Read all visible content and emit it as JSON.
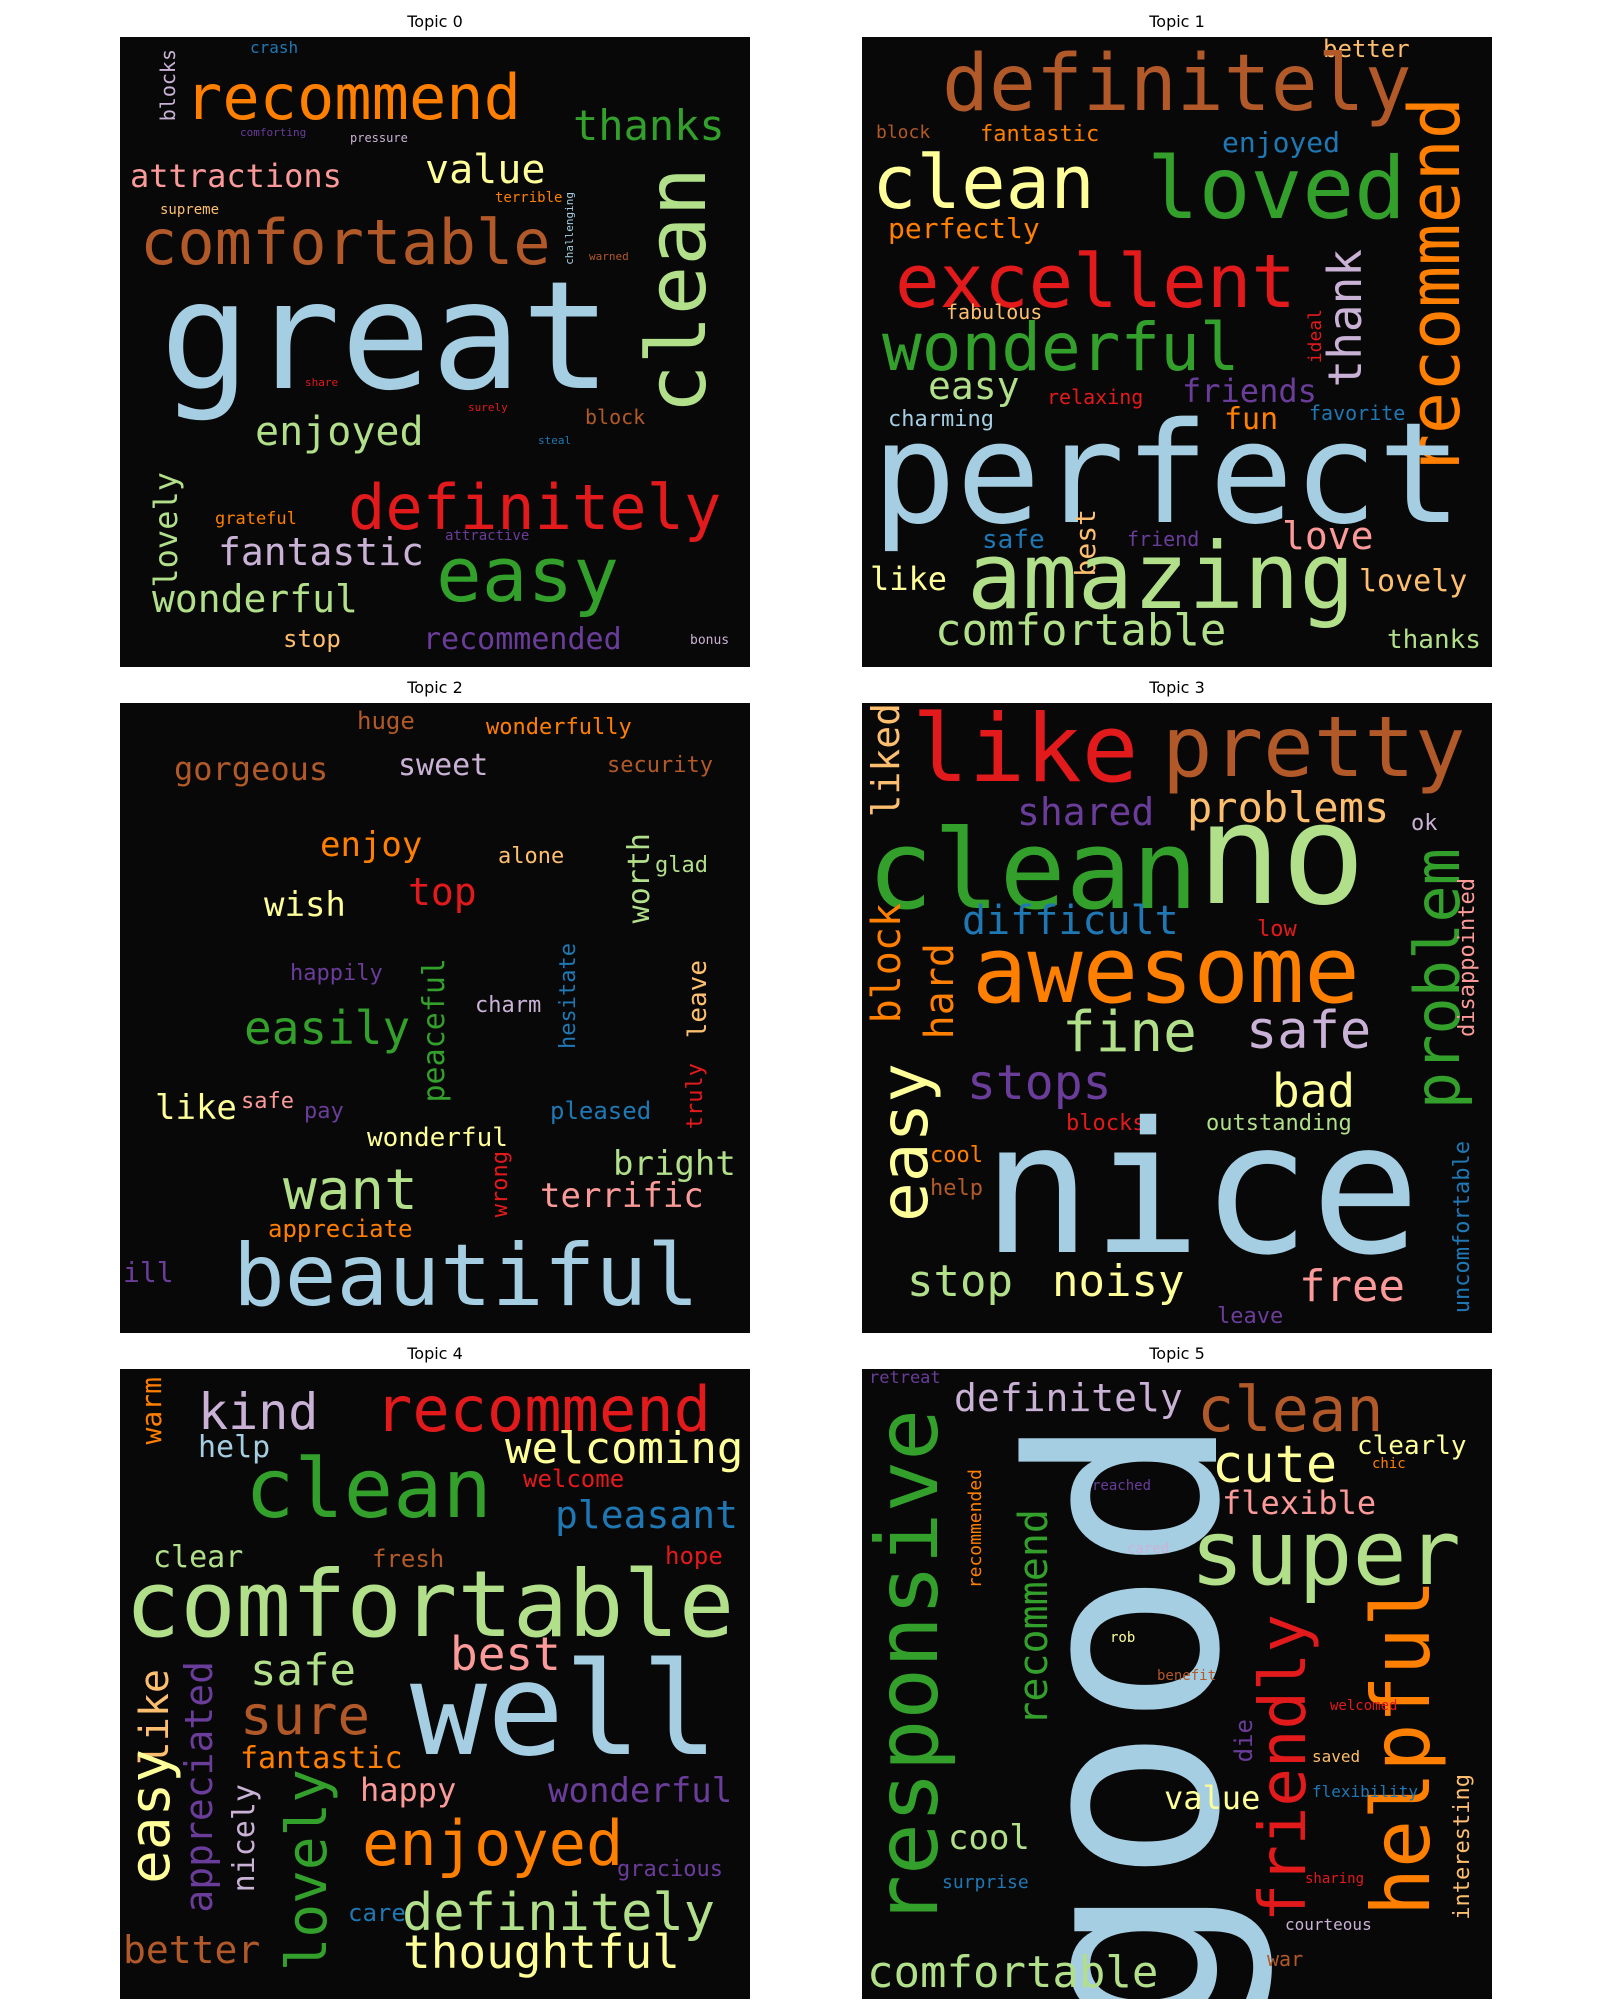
{
  "figure": {
    "panels": [
      {
        "title": "Topic 0",
        "words": [
          {
            "text": "crash",
            "color": "#1f78b4"
          },
          {
            "text": "blocks",
            "color": "#cab2d6"
          },
          {
            "text": "recommend",
            "color": "#ff7f00"
          },
          {
            "text": "thanks",
            "color": "#33a02c"
          },
          {
            "text": "comforting",
            "color": "#6a3d9a"
          },
          {
            "text": "pressure",
            "color": "#cab2d6"
          },
          {
            "text": "attractions",
            "color": "#fb9a99"
          },
          {
            "text": "value",
            "color": "#ffff99"
          },
          {
            "text": "supreme",
            "color": "#fdbf6f"
          },
          {
            "text": "terrible",
            "color": "#ff7f00"
          },
          {
            "text": "challenging",
            "color": "#a6cee3"
          },
          {
            "text": "warned",
            "color": "#b15928"
          },
          {
            "text": "comfortable",
            "color": "#b15928"
          },
          {
            "text": "clean",
            "color": "#b2df8a"
          },
          {
            "text": "great",
            "color": "#a6cee3"
          },
          {
            "text": "share",
            "color": "#e31a1c"
          },
          {
            "text": "surely",
            "color": "#e31a1c"
          },
          {
            "text": "block",
            "color": "#b15928"
          },
          {
            "text": "enjoyed",
            "color": "#b2df8a"
          },
          {
            "text": "steal",
            "color": "#1f78b4"
          },
          {
            "text": "lovely",
            "color": "#b2df8a"
          },
          {
            "text": "grateful",
            "color": "#ff7f00"
          },
          {
            "text": "definitely",
            "color": "#e31a1c"
          },
          {
            "text": "attractive",
            "color": "#6a3d9a"
          },
          {
            "text": "fantastic",
            "color": "#cab2d6"
          },
          {
            "text": "easy",
            "color": "#33a02c"
          },
          {
            "text": "wonderful",
            "color": "#b2df8a"
          },
          {
            "text": "stop",
            "color": "#fdbf6f"
          },
          {
            "text": "recommended",
            "color": "#6a3d9a"
          },
          {
            "text": "bonus",
            "color": "#cab2d6"
          }
        ]
      },
      {
        "title": "Topic 1",
        "words": [
          {
            "text": "better",
            "color": "#fdbf6f"
          },
          {
            "text": "definitely",
            "color": "#b15928"
          },
          {
            "text": "block",
            "color": "#b15928"
          },
          {
            "text": "fantastic",
            "color": "#ff7f00"
          },
          {
            "text": "enjoyed",
            "color": "#1f78b4"
          },
          {
            "text": "clean",
            "color": "#ffff99"
          },
          {
            "text": "loved",
            "color": "#33a02c"
          },
          {
            "text": "recommend",
            "color": "#ff7f00"
          },
          {
            "text": "perfectly",
            "color": "#ff7f00"
          },
          {
            "text": "excellent",
            "color": "#e31a1c"
          },
          {
            "text": "thank",
            "color": "#cab2d6"
          },
          {
            "text": "fabulous",
            "color": "#fdbf6f"
          },
          {
            "text": "ideal",
            "color": "#e31a1c"
          },
          {
            "text": "wonderful",
            "color": "#33a02c"
          },
          {
            "text": "easy",
            "color": "#b2df8a"
          },
          {
            "text": "charming",
            "color": "#a6cee3"
          },
          {
            "text": "relaxing",
            "color": "#e31a1c"
          },
          {
            "text": "friends",
            "color": "#6a3d9a"
          },
          {
            "text": "fun",
            "color": "#ff7f00"
          },
          {
            "text": "favorite",
            "color": "#1f78b4"
          },
          {
            "text": "perfect",
            "color": "#a6cee3"
          },
          {
            "text": "best",
            "color": "#fdbf6f"
          },
          {
            "text": "safe",
            "color": "#1f78b4"
          },
          {
            "text": "friend",
            "color": "#6a3d9a"
          },
          {
            "text": "love",
            "color": "#fb9a99"
          },
          {
            "text": "like",
            "color": "#ffff99"
          },
          {
            "text": "amazing",
            "color": "#b2df8a"
          },
          {
            "text": "lovely",
            "color": "#fdbf6f"
          },
          {
            "text": "comfortable",
            "color": "#b2df8a"
          },
          {
            "text": "thanks",
            "color": "#b2df8a"
          }
        ]
      },
      {
        "title": "Topic 2",
        "words": [
          {
            "text": "huge",
            "color": "#b15928"
          },
          {
            "text": "wonderfully",
            "color": "#ff7f00"
          },
          {
            "text": "gorgeous",
            "color": "#b15928"
          },
          {
            "text": "sweet",
            "color": "#cab2d6"
          },
          {
            "text": "security",
            "color": "#b15928"
          },
          {
            "text": "enjoy",
            "color": "#ff7f00"
          },
          {
            "text": "alone",
            "color": "#fdbf6f"
          },
          {
            "text": "worth",
            "color": "#b2df8a"
          },
          {
            "text": "glad",
            "color": "#b2df8a"
          },
          {
            "text": "top",
            "color": "#e31a1c"
          },
          {
            "text": "wish",
            "color": "#ffff99"
          },
          {
            "text": "happily",
            "color": "#6a3d9a"
          },
          {
            "text": "peaceful",
            "color": "#33a02c"
          },
          {
            "text": "hesitate",
            "color": "#1f78b4"
          },
          {
            "text": "leave",
            "color": "#fdbf6f"
          },
          {
            "text": "charm",
            "color": "#cab2d6"
          },
          {
            "text": "easily",
            "color": "#33a02c"
          },
          {
            "text": "truly",
            "color": "#e31a1c"
          },
          {
            "text": "like",
            "color": "#ffff99"
          },
          {
            "text": "safe",
            "color": "#fb9a99"
          },
          {
            "text": "pay",
            "color": "#6a3d9a"
          },
          {
            "text": "pleased",
            "color": "#1f78b4"
          },
          {
            "text": "wonderful",
            "color": "#ffff99"
          },
          {
            "text": "bright",
            "color": "#b2df8a"
          },
          {
            "text": "want",
            "color": "#b2df8a"
          },
          {
            "text": "wrong",
            "color": "#e31a1c"
          },
          {
            "text": "terrific",
            "color": "#fb9a99"
          },
          {
            "text": "appreciate",
            "color": "#ff7f00"
          },
          {
            "text": "ill",
            "color": "#6a3d9a"
          },
          {
            "text": "beautiful",
            "color": "#a6cee3"
          }
        ]
      },
      {
        "title": "Topic 3",
        "words": [
          {
            "text": "liked",
            "color": "#fdbf6f"
          },
          {
            "text": "like",
            "color": "#e31a1c"
          },
          {
            "text": "pretty",
            "color": "#b15928"
          },
          {
            "text": "shared",
            "color": "#6a3d9a"
          },
          {
            "text": "problems",
            "color": "#fdbf6f"
          },
          {
            "text": "ok",
            "color": "#cab2d6"
          },
          {
            "text": "clean",
            "color": "#33a02c"
          },
          {
            "text": "no",
            "color": "#b2df8a"
          },
          {
            "text": "problem",
            "color": "#33a02c"
          },
          {
            "text": "difficult",
            "color": "#1f78b4"
          },
          {
            "text": "low",
            "color": "#e31a1c"
          },
          {
            "text": "disappointed",
            "color": "#fb9a99"
          },
          {
            "text": "block",
            "color": "#ff7f00"
          },
          {
            "text": "hard",
            "color": "#ff7f00"
          },
          {
            "text": "awesome",
            "color": "#ff7f00"
          },
          {
            "text": "fine",
            "color": "#b2df8a"
          },
          {
            "text": "safe",
            "color": "#cab2d6"
          },
          {
            "text": "stops",
            "color": "#6a3d9a"
          },
          {
            "text": "bad",
            "color": "#ffff99"
          },
          {
            "text": "easy",
            "color": "#ffff99"
          },
          {
            "text": "blocks",
            "color": "#e31a1c"
          },
          {
            "text": "outstanding",
            "color": "#b2df8a"
          },
          {
            "text": "cool",
            "color": "#ff7f00"
          },
          {
            "text": "help",
            "color": "#b15928"
          },
          {
            "text": "nice",
            "color": "#a6cee3"
          },
          {
            "text": "uncomfortable",
            "color": "#1f78b4"
          },
          {
            "text": "stop",
            "color": "#b2df8a"
          },
          {
            "text": "noisy",
            "color": "#ffff99"
          },
          {
            "text": "free",
            "color": "#fb9a99"
          },
          {
            "text": "leave",
            "color": "#6a3d9a"
          }
        ]
      },
      {
        "title": "Topic 4",
        "words": [
          {
            "text": "warm",
            "color": "#ff7f00"
          },
          {
            "text": "kind",
            "color": "#cab2d6"
          },
          {
            "text": "recommend",
            "color": "#e31a1c"
          },
          {
            "text": "help",
            "color": "#a6cee3"
          },
          {
            "text": "welcoming",
            "color": "#ffff99"
          },
          {
            "text": "clean",
            "color": "#33a02c"
          },
          {
            "text": "welcome",
            "color": "#e31a1c"
          },
          {
            "text": "pleasant",
            "color": "#1f78b4"
          },
          {
            "text": "clear",
            "color": "#b2df8a"
          },
          {
            "text": "fresh",
            "color": "#b15928"
          },
          {
            "text": "hope",
            "color": "#e31a1c"
          },
          {
            "text": "comfortable",
            "color": "#b2df8a"
          },
          {
            "text": "safe",
            "color": "#b2df8a"
          },
          {
            "text": "best",
            "color": "#fb9a99"
          },
          {
            "text": "sure",
            "color": "#b15928"
          },
          {
            "text": "well",
            "color": "#a6cee3"
          },
          {
            "text": "like",
            "color": "#fdbf6f"
          },
          {
            "text": "easy",
            "color": "#ffff99"
          },
          {
            "text": "appreciated",
            "color": "#6a3d9a"
          },
          {
            "text": "fantastic",
            "color": "#ff7f00"
          },
          {
            "text": "nicely",
            "color": "#cab2d6"
          },
          {
            "text": "lovely",
            "color": "#33a02c"
          },
          {
            "text": "happy",
            "color": "#fb9a99"
          },
          {
            "text": "wonderful",
            "color": "#6a3d9a"
          },
          {
            "text": "enjoyed",
            "color": "#ff7f00"
          },
          {
            "text": "gracious",
            "color": "#6a3d9a"
          },
          {
            "text": "care",
            "color": "#1f78b4"
          },
          {
            "text": "definitely",
            "color": "#b2df8a"
          },
          {
            "text": "better",
            "color": "#b15928"
          },
          {
            "text": "thoughtful",
            "color": "#ffff99"
          }
        ]
      },
      {
        "title": "Topic 5",
        "words": [
          {
            "text": "retreat",
            "color": "#6a3d9a"
          },
          {
            "text": "definitely",
            "color": "#cab2d6"
          },
          {
            "text": "clean",
            "color": "#b15928"
          },
          {
            "text": "responsive",
            "color": "#33a02c"
          },
          {
            "text": "good",
            "color": "#a6cee3"
          },
          {
            "text": "cute",
            "color": "#ffff99"
          },
          {
            "text": "clearly",
            "color": "#ffff99"
          },
          {
            "text": "chic",
            "color": "#ff7f00"
          },
          {
            "text": "recommended",
            "color": "#ff7f00"
          },
          {
            "text": "reached",
            "color": "#6a3d9a"
          },
          {
            "text": "flexible",
            "color": "#fb9a99"
          },
          {
            "text": "super",
            "color": "#b2df8a"
          },
          {
            "text": "cared",
            "color": "#cab2d6"
          },
          {
            "text": "recommend",
            "color": "#33a02c"
          },
          {
            "text": "rob",
            "color": "#ffff99"
          },
          {
            "text": "helpful",
            "color": "#ff7f00"
          },
          {
            "text": "friendly",
            "color": "#e31a1c"
          },
          {
            "text": "benefit",
            "color": "#b15928"
          },
          {
            "text": "welcomed",
            "color": "#e31a1c"
          },
          {
            "text": "die",
            "color": "#6a3d9a"
          },
          {
            "text": "saved",
            "color": "#fdbf6f"
          },
          {
            "text": "value",
            "color": "#ffff99"
          },
          {
            "text": "flexibility",
            "color": "#1f78b4"
          },
          {
            "text": "interesting",
            "color": "#fdbf6f"
          },
          {
            "text": "cool",
            "color": "#b2df8a"
          },
          {
            "text": "surprise",
            "color": "#1f78b4"
          },
          {
            "text": "sharing",
            "color": "#e31a1c"
          },
          {
            "text": "courteous",
            "color": "#cab2d6"
          },
          {
            "text": "war",
            "color": "#b15928"
          },
          {
            "text": "comfortable",
            "color": "#b2df8a"
          }
        ]
      }
    ]
  }
}
